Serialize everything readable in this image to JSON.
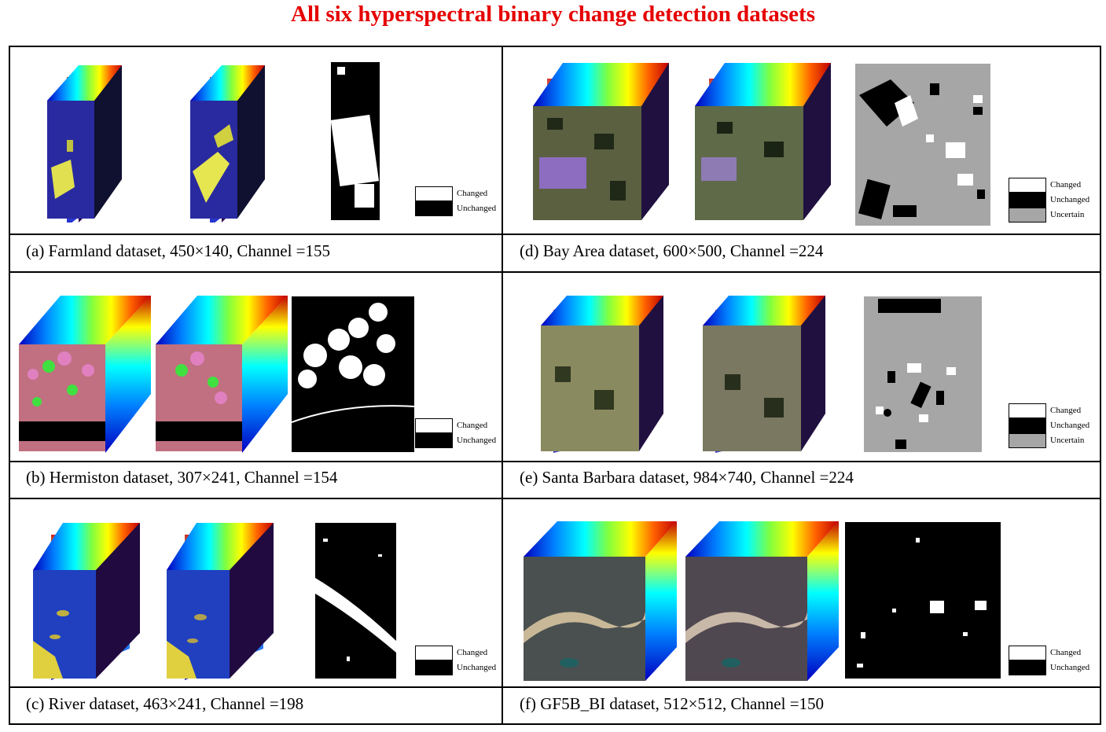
{
  "title": "All six hyperspectral binary change detection datasets",
  "colors": {
    "title": "#e60000",
    "changed": "#ffffff",
    "unchanged": "#000000",
    "uncertain": "#a6a6a6"
  },
  "panels": [
    {
      "caption": "(a)  Farmland dataset, 450×140, Channel =155",
      "legend": [
        "Changed",
        "Unchanged"
      ]
    },
    {
      "caption": "(d)  Bay Area dataset, 600×500, Channel =224",
      "legend": [
        "Changed",
        "Unchanged",
        "Uncertain"
      ]
    },
    {
      "caption": "(b)  Hermiston dataset, 307×241, Channel =154",
      "legend": [
        "Changed",
        "Unchanged"
      ]
    },
    {
      "caption": "(e)  Santa Barbara dataset, 984×740, Channel =224",
      "legend": [
        "Changed",
        "Unchanged",
        "Uncertain"
      ]
    },
    {
      "caption": "(c)  River dataset, 463×241, Channel =198",
      "legend": [
        "Changed",
        "Unchanged"
      ]
    },
    {
      "caption": "(f)  GF5B_BI dataset, 512×512, Channel =150",
      "legend": [
        "Changed",
        "Unchanged"
      ]
    }
  ]
}
